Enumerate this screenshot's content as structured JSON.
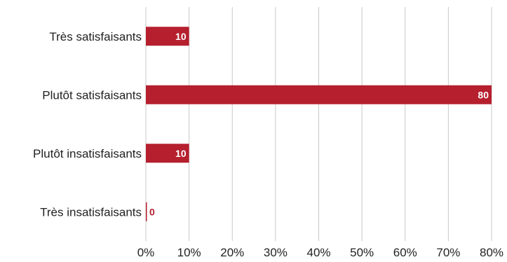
{
  "chart_data": {
    "type": "bar",
    "orientation": "horizontal",
    "categories": [
      "Très satisfaisants",
      "Plutôt satisfaisants",
      "Plutôt insatisfaisants",
      "Très insatisfaisants"
    ],
    "values": [
      10,
      80,
      10,
      0
    ],
    "data_labels": [
      "10",
      "80",
      "10",
      "0"
    ],
    "x_ticks": [
      "0%",
      "10%",
      "20%",
      "30%",
      "40%",
      "50%",
      "60%",
      "70%",
      "80%"
    ],
    "xlim": [
      0,
      80
    ],
    "title": "",
    "xlabel": "",
    "ylabel": "",
    "grid": "vertical",
    "legend": "none",
    "colors": {
      "bar": "#b51f2e",
      "grid": "#c8c8c8",
      "label_inside": "#ffffff",
      "label_outside": "#b51f2e"
    }
  }
}
